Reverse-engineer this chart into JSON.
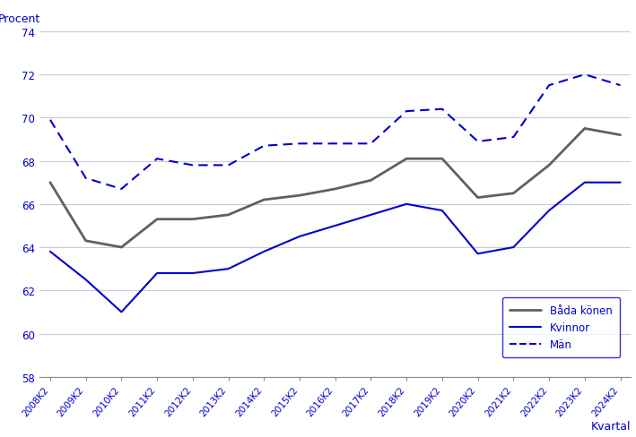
{
  "x_labels": [
    "2008K2",
    "2009K2",
    "2010K2",
    "2011K2",
    "2012K2",
    "2013K2",
    "2014K2",
    "2015K2",
    "2016K2",
    "2017K2",
    "2018K2",
    "2019K2",
    "2020K2",
    "2021K2",
    "2022K2",
    "2023K2",
    "2024K2"
  ],
  "bada_konen": [
    67.0,
    64.3,
    64.0,
    65.3,
    65.3,
    65.5,
    66.2,
    66.4,
    66.7,
    67.1,
    68.1,
    68.1,
    66.3,
    66.5,
    67.8,
    69.5,
    69.2
  ],
  "kvinnor": [
    63.8,
    62.5,
    61.0,
    62.8,
    62.8,
    63.0,
    63.8,
    64.5,
    65.0,
    65.5,
    66.0,
    65.7,
    63.7,
    64.0,
    65.7,
    67.0,
    67.0
  ],
  "man": [
    69.9,
    67.2,
    66.7,
    68.1,
    67.8,
    67.8,
    68.7,
    68.8,
    68.8,
    68.8,
    70.3,
    70.4,
    68.9,
    69.1,
    71.5,
    72.0,
    71.5
  ],
  "ylim": [
    58,
    74
  ],
  "yticks": [
    58,
    60,
    62,
    64,
    66,
    68,
    70,
    72,
    74
  ],
  "ylabel": "Procent",
  "xlabel": "Kvartal",
  "line_color_bada": "#606060",
  "line_color_kvinnor": "#0000CC",
  "line_color_man": "#0000CC",
  "legend_labels": [
    "Båda könen",
    "Kvinnor",
    "Män"
  ],
  "bg_color": "#ffffff",
  "grid_color": "#c8c8e0",
  "axis_color": "#0000CC",
  "tick_color": "#0000CC",
  "label_color": "#0000CC"
}
